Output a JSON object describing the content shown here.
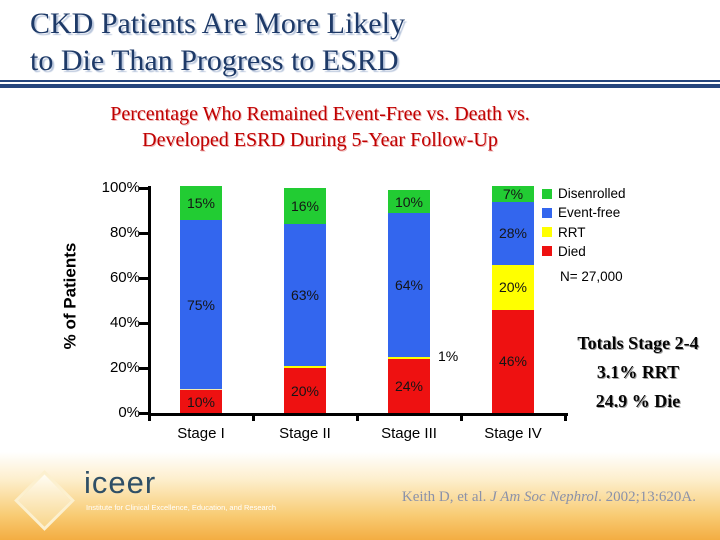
{
  "slide": {
    "title_lines": [
      "CKD Patients Are More Likely",
      "to Die Than Progress to ESRD"
    ],
    "subtitle_lines": [
      "Percentage Who Remained Event-Free vs. Death vs.",
      "Developed ESRD During 5-Year Follow-Up"
    ],
    "side_notes": {
      "totals_title": "Totals Stage 2-4",
      "totals_rrt": "3.1% RRT",
      "totals_die": "24.9 % Die"
    },
    "footer": {
      "logo_text": "iceer",
      "logo_tagline": "Institute for Clinical Excellence, Education, and Research",
      "citation_prefix": "Keith D, et al. ",
      "citation_journal": "J Am Soc Nephrol",
      "citation_suffix": ". 2002;13:620A."
    },
    "colors": {
      "title_navy": "#1e3a68",
      "subtitle_red": "#c00000",
      "footer_amber": "#f3ad42"
    }
  },
  "chart_data": {
    "type": "bar",
    "stacked": true,
    "title": "Percentage Who Remained Event-Free vs. Death vs. Developed ESRD During 5-Year Follow-Up",
    "xlabel": "",
    "ylabel": "% of Patients",
    "ylim": [
      0,
      100
    ],
    "yticks": [
      "100%",
      "80%",
      "60%",
      "40%",
      "20%",
      "0%"
    ],
    "grid": false,
    "legend_position": "top-right",
    "legend": [
      {
        "label": "Disenrolled",
        "color": "#22cc33"
      },
      {
        "label": "Event-free",
        "color": "#3366ee"
      },
      {
        "label": "RRT",
        "color": "#ffff00"
      },
      {
        "label": "Died",
        "color": "#ee1111"
      }
    ],
    "categories": [
      "Stage I",
      "Stage II",
      "Stage III",
      "Stage IV"
    ],
    "series": [
      {
        "name": "Disenrolled",
        "values": [
          15,
          16,
          10,
          7
        ]
      },
      {
        "name": "Event-free",
        "values": [
          75,
          63,
          64,
          28
        ]
      },
      {
        "name": "RRT",
        "values": [
          0,
          1,
          1,
          20
        ]
      },
      {
        "name": "Died",
        "values": [
          10,
          20,
          24,
          46
        ]
      }
    ],
    "bar_labels": [
      [
        "15%",
        "75%",
        "",
        "10%"
      ],
      [
        "16%",
        "63%",
        "",
        "20%"
      ],
      [
        "10%",
        "64%",
        "",
        "24%"
      ],
      [
        "7%",
        "28%",
        "20%",
        "46%"
      ]
    ],
    "outside_labels": [
      {
        "category_index": 2,
        "series_index": 2,
        "text": "1%"
      }
    ],
    "sample_size_note": "N= 27,000"
  }
}
